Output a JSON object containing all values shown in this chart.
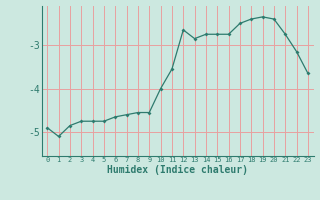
{
  "x": [
    0,
    1,
    2,
    3,
    4,
    5,
    6,
    7,
    8,
    9,
    10,
    11,
    12,
    13,
    14,
    15,
    16,
    17,
    18,
    19,
    20,
    21,
    22,
    23
  ],
  "y": [
    -4.9,
    -5.1,
    -4.85,
    -4.75,
    -4.75,
    -4.75,
    -4.65,
    -4.6,
    -4.55,
    -4.55,
    -4.0,
    -3.55,
    -2.65,
    -2.85,
    -2.75,
    -2.75,
    -2.75,
    -2.5,
    -2.4,
    -2.35,
    -2.4,
    -2.75,
    -3.15,
    -3.65
  ],
  "line_color": "#2e7b6e",
  "marker_color": "#2e7b6e",
  "bg_color": "#cce8e0",
  "grid_color": "#e8a0a0",
  "xlabel": "Humidex (Indice chaleur)",
  "yticks": [
    -5,
    -4,
    -3
  ],
  "ylim": [
    -5.55,
    -2.1
  ],
  "xlim": [
    -0.5,
    23.5
  ]
}
